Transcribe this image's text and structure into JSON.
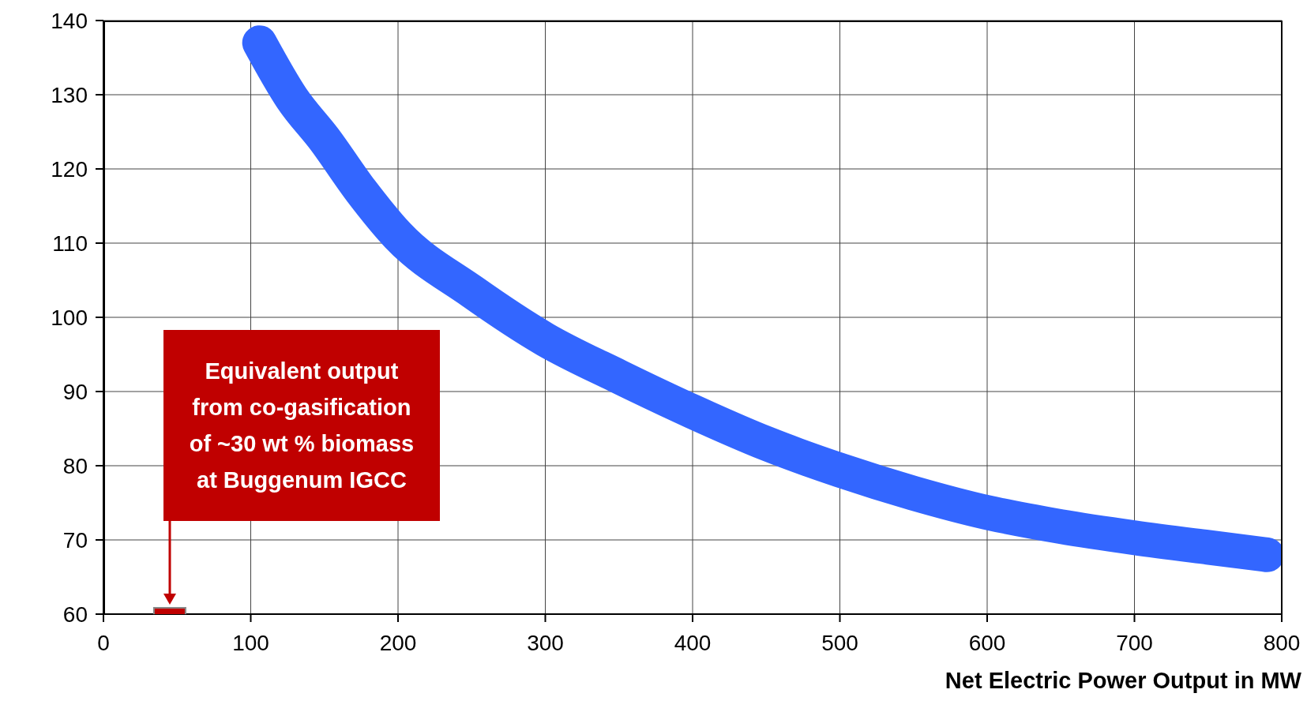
{
  "chart_data": {
    "type": "line",
    "xlabel": "Net Electric Power Output in MW",
    "series": [
      {
        "color": "#3366ff",
        "x": [
          106,
          128,
          150,
          175,
          200,
          250,
          300,
          350,
          400,
          450,
          500,
          550,
          600,
          650,
          700,
          750,
          790
        ],
        "values": [
          137,
          129.5,
          124,
          117,
          111,
          103.5,
          97,
          92,
          87.3,
          83,
          79.4,
          76.3,
          73.7,
          71.8,
          70.3,
          69,
          68
        ]
      },
      {
        "type": "scatter",
        "color": "#c00000",
        "marker": "square",
        "x": [
          45
        ],
        "values": [
          60
        ]
      }
    ],
    "annotations": [
      "Equivalent output from co-gasification of ~30 wt % biomass at Buggenum IGCC"
    ],
    "xlim": [
      0,
      800
    ],
    "ylim": [
      60,
      140
    ],
    "xticks": [
      0,
      100,
      200,
      300,
      400,
      500,
      600,
      700,
      800
    ],
    "yticks": [
      60,
      70,
      80,
      90,
      100,
      110,
      120,
      130,
      140
    ],
    "grid": true,
    "line_style": "solid"
  }
}
